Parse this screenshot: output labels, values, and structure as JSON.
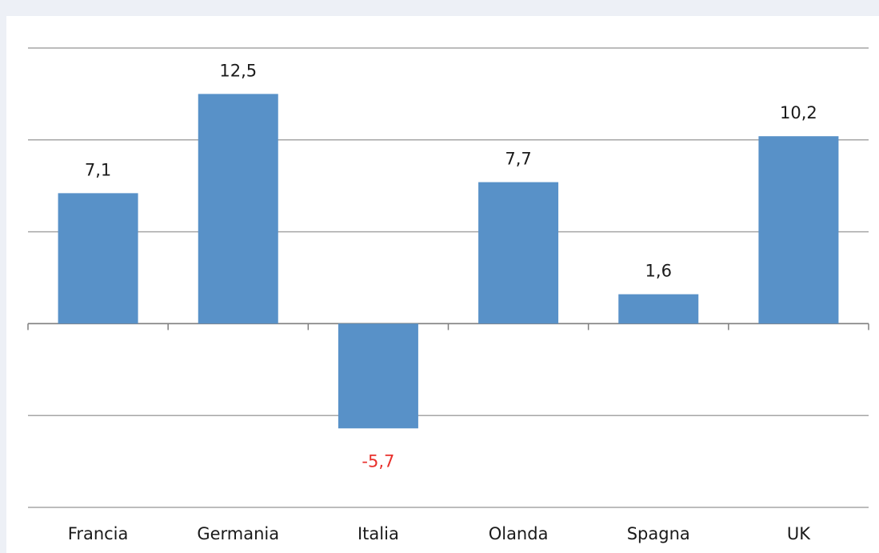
{
  "chart_data": {
    "type": "bar",
    "categories": [
      "Francia",
      "Germania",
      "Italia",
      "Olanda",
      "Spagna",
      "UK"
    ],
    "values": [
      7.1,
      12.5,
      -5.7,
      7.7,
      1.6,
      10.2
    ],
    "value_labels": [
      "7,1",
      "12,5",
      "-5,7",
      "7,7",
      "1,6",
      "10,2"
    ],
    "color": "#5891c8",
    "label_color": "#1a1a1a",
    "negative_label_color": "#e8302c",
    "ylim": [
      -10,
      15
    ],
    "yticks": [
      -10,
      -5,
      0,
      5,
      10,
      15
    ],
    "grid": true
  }
}
